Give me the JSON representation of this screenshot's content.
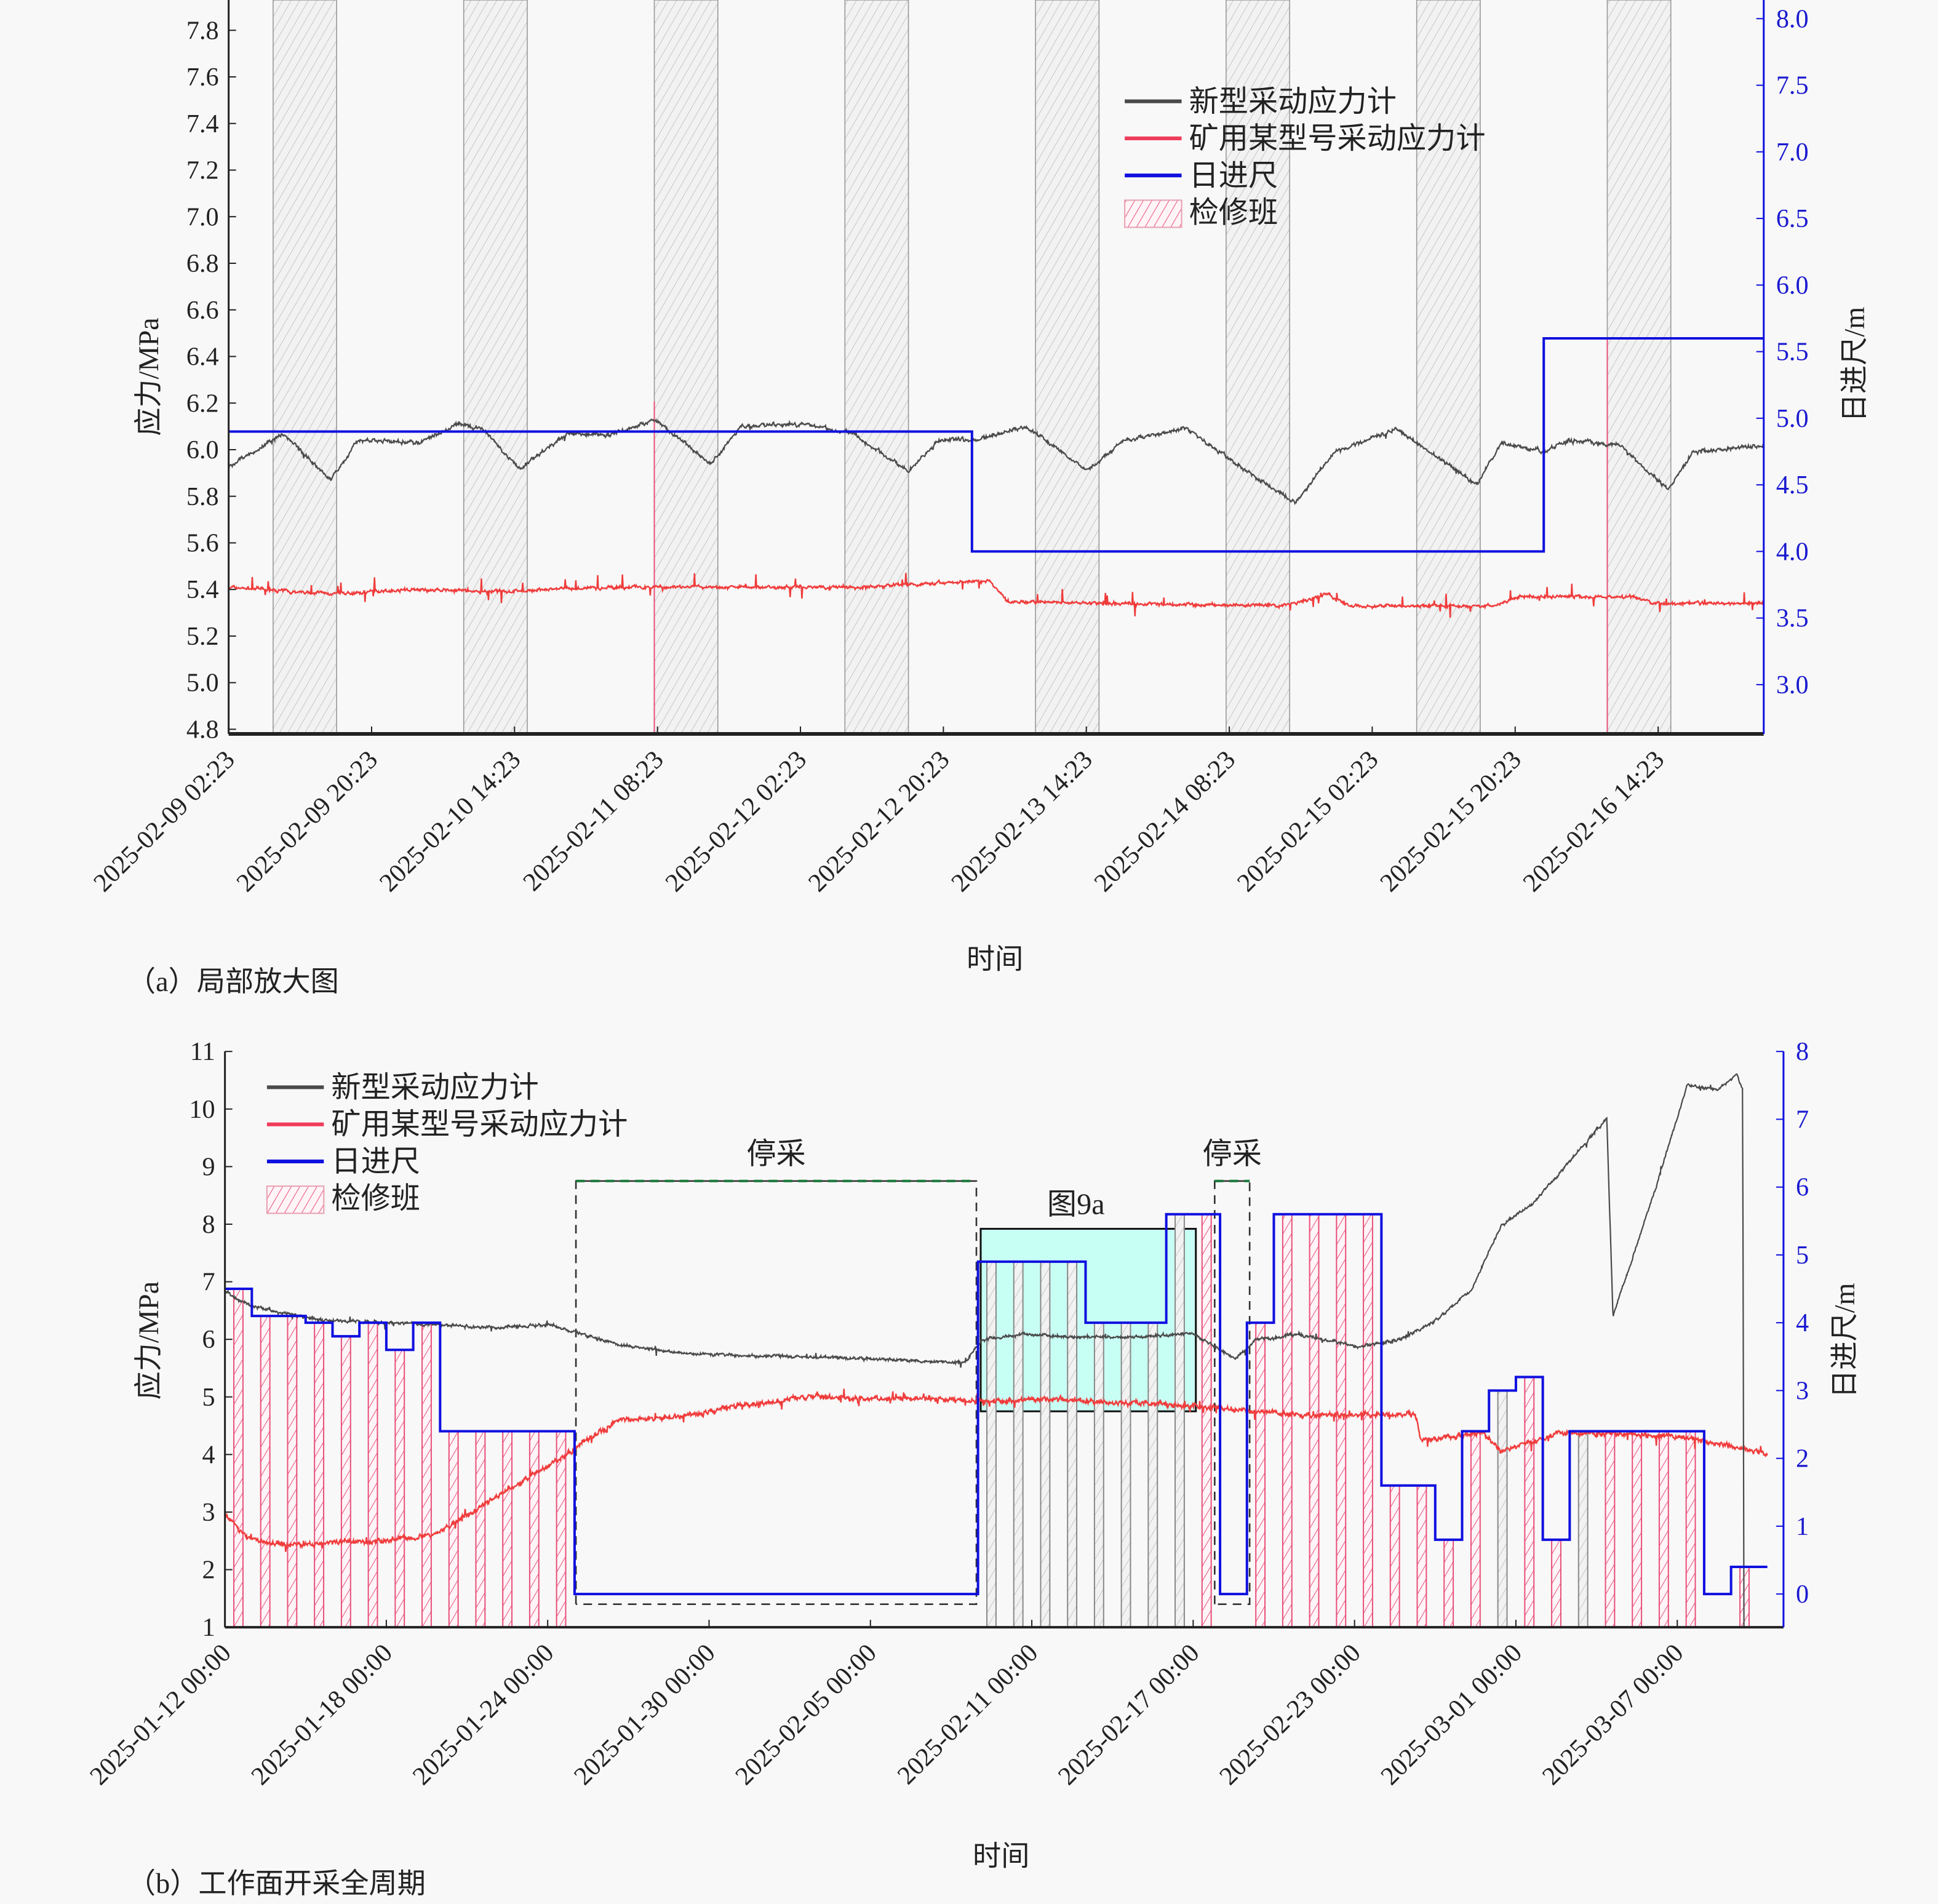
{
  "colors": {
    "new_gauge": "#4a4a4a",
    "mine_gauge": "#f03c3c",
    "advance": "#1010e0",
    "maintenance": "#e8507a",
    "stop_box": "#1a7a3a",
    "fig9a_fill": "#c8fff4"
  },
  "legend": [
    "新型采动应力计",
    "矿用某型号采动应力计",
    "日进尺",
    "检修班"
  ],
  "chart_data": [
    {
      "type": "line",
      "caption": "（a）局部放大图",
      "xlabel": "时间",
      "ylabel": "应力/MPa",
      "y2label": "日进尺/m",
      "x_unit": "hours since 2025-02-09 02:23",
      "xlim": [
        0,
        193.3
      ],
      "ylim": [
        4.78,
        7.93
      ],
      "y2lim": [
        2.63,
        8.14
      ],
      "x_ticks": [
        0,
        18,
        36,
        54,
        72,
        90,
        108,
        126,
        144,
        162,
        180
      ],
      "x_tick_labels": [
        "2025-02-09 02:23",
        "2025-02-09 20:23",
        "2025-02-10 14:23",
        "2025-02-11 08:23",
        "2025-02-12 02:23",
        "2025-02-12 20:23",
        "2025-02-13 14:23",
        "2025-02-14 08:23",
        "2025-02-15 02:23",
        "2025-02-15 20:23",
        "2025-02-16 14:23"
      ],
      "y_ticks": [
        "4.8",
        "5.0",
        "5.2",
        "5.4",
        "5.6",
        "5.8",
        "6.0",
        "6.2",
        "6.4",
        "6.6",
        "6.8",
        "7.0",
        "7.2",
        "7.4",
        "7.6",
        "7.8"
      ],
      "y2_ticks": [
        "3.0",
        "3.5",
        "4.0",
        "4.5",
        "5.0",
        "5.5",
        "6.0",
        "6.5",
        "7.0",
        "7.5",
        "8.0"
      ],
      "series": [
        {
          "name": "新型采动应力计",
          "x": [
            0,
            7,
            12.9,
            16.3,
            24.1,
            28.8,
            31.9,
            36.6,
            42.8,
            47.5,
            53.7,
            60.7,
            64.6,
            72.4,
            78.6,
            85.6,
            89.5,
            94.1,
            100.4,
            108.1,
            112.8,
            120.6,
            126.8,
            134.3,
            139.3,
            147,
            157.2,
            160.3,
            165.7,
            168.8,
            175.1,
            181.3,
            184.4,
            193.3
          ],
          "y": [
            5.93,
            6.07,
            5.87,
            6.04,
            6.03,
            6.11,
            6.09,
            5.92,
            6.07,
            6.06,
            6.13,
            5.94,
            6.1,
            6.11,
            6.07,
            5.91,
            6.04,
            6.04,
            6.1,
            5.91,
            6.04,
            6.09,
            5.94,
            5.77,
            5.99,
            6.09,
            5.85,
            6.03,
            5.99,
            6.04,
            6.02,
            5.83,
            5.99,
            6.02
          ]
        },
        {
          "name": "矿用某型号采动应力计",
          "x": [
            0,
            13.2,
            22.6,
            33.5,
            49,
            64.6,
            80.1,
            95.7,
            98,
            111.3,
            133,
            138.5,
            141.1,
            159.5,
            162.6,
            176.6,
            179.7,
            193.3
          ],
          "y": [
            5.41,
            5.38,
            5.4,
            5.39,
            5.41,
            5.41,
            5.41,
            5.44,
            5.35,
            5.34,
            5.33,
            5.38,
            5.33,
            5.33,
            5.37,
            5.37,
            5.34,
            5.34
          ]
        },
        {
          "name": "日进尺",
          "axis": "right",
          "steps_x": [
            0,
            93.6,
            165.6,
            193.3
          ],
          "steps_y": [
            4.9,
            4.0,
            5.6
          ]
        }
      ],
      "maintenance_hours": [
        [
          5.6,
          13.6
        ],
        [
          29.6,
          37.6
        ],
        [
          53.6,
          61.6
        ],
        [
          77.6,
          85.6
        ],
        [
          101.6,
          109.6
        ],
        [
          125.6,
          133.6
        ],
        [
          149.6,
          157.6
        ],
        [
          173.6,
          181.6
        ]
      ]
    },
    {
      "type": "line",
      "caption": "（b）工作面开采全周期",
      "xlabel": "时间",
      "ylabel": "应力/MPa",
      "y2label": "日进尺/m",
      "x_unit": "days since 2025-01-12 00:00",
      "xlim": [
        0,
        57.95
      ],
      "ylim": [
        1,
        11
      ],
      "y2lim": [
        -0.49,
        8
      ],
      "x_ticks": [
        0,
        6,
        12,
        18,
        24,
        30,
        36,
        42,
        48,
        54
      ],
      "x_tick_labels": [
        "2025-01-12 00:00",
        "2025-01-18 00:00",
        "2025-01-24 00:00",
        "2025-01-30 00:00",
        "2025-02-05 00:00",
        "2025-02-11 00:00",
        "2025-02-17 00:00",
        "2025-02-23 00:00",
        "2025-03-01 00:00",
        "2025-03-07 00:00"
      ],
      "y_ticks": [
        "1",
        "2",
        "3",
        "4",
        "5",
        "6",
        "7",
        "8",
        "9",
        "10",
        "11"
      ],
      "y2_ticks": [
        "0",
        "1",
        "2",
        "3",
        "4",
        "5",
        "6",
        "7",
        "8"
      ],
      "series": [
        {
          "name": "新型采动应力计",
          "x": [
            0,
            0.83,
            2.21,
            3.58,
            5.42,
            7.72,
            10.02,
            12.09,
            13.24,
            14.61,
            16.91,
            19.21,
            21.51,
            23.81,
            26.56,
            27.48,
            28.17,
            29.78,
            31.62,
            33.92,
            35.98,
            37.59,
            38.28,
            39.89,
            42.19,
            43.57,
            44.94,
            46.32,
            47.47,
            48.62,
            50,
            51.38,
            51.61,
            52.3,
            53.22,
            54.37,
            55.51,
            56.2,
            56.43,
            56.48
          ],
          "y": [
            6.84,
            6.6,
            6.45,
            6.34,
            6.3,
            6.26,
            6.2,
            6.26,
            6.09,
            5.91,
            5.76,
            5.72,
            5.7,
            5.66,
            5.61,
            5.6,
            6.0,
            6.09,
            6.04,
            6.04,
            6.1,
            5.66,
            5.98,
            6.09,
            5.87,
            5.98,
            6.3,
            6.84,
            8.0,
            8.34,
            9.1,
            9.84,
            6.41,
            7.37,
            8.66,
            10.42,
            10.33,
            10.6,
            10.34,
            1.0
          ]
        },
        {
          "name": "矿用某型号采动应力计",
          "x": [
            0,
            0.83,
            2.21,
            5.42,
            7.72,
            9.1,
            10.94,
            13.05,
            14.61,
            16.91,
            19.21,
            21.97,
            23.81,
            26.56,
            27.94,
            30.7,
            33,
            36.21,
            39.89,
            44.26,
            44.49,
            46.78,
            47.47,
            49.54,
            51.38,
            54.14,
            57.35
          ],
          "y": [
            2.97,
            2.54,
            2.43,
            2.5,
            2.6,
            2.97,
            3.51,
            4.1,
            4.6,
            4.65,
            4.85,
            5.01,
            4.97,
            4.97,
            4.92,
            4.97,
            4.9,
            4.84,
            4.69,
            4.69,
            4.26,
            4.37,
            4.05,
            4.37,
            4.37,
            4.31,
            4.0
          ]
        },
        {
          "name": "日进尺",
          "axis": "right",
          "steps_x": [
            0,
            1,
            3,
            4,
            5,
            6,
            7,
            8,
            13,
            28,
            32,
            35,
            37,
            38,
            39,
            43,
            45,
            46,
            47,
            48,
            49,
            50,
            55,
            56,
            57.35
          ],
          "steps_y": [
            4.5,
            4.1,
            4.0,
            3.8,
            4.0,
            3.6,
            4.0,
            2.4,
            0,
            4.9,
            4.0,
            5.6,
            0,
            4.0,
            5.6,
            1.6,
            0.8,
            2.4,
            3.0,
            3.2,
            0.8,
            2.4,
            0,
            0.4
          ]
        }
      ],
      "annotations": [
        {
          "text": "停采",
          "x_range": [
            13.05,
            27.94
          ],
          "y_range": [
            1.4,
            8.75
          ]
        },
        {
          "text": "停采",
          "x_range": [
            36.8,
            38.1
          ],
          "y_range": [
            1.4,
            8.75
          ]
        },
        {
          "text": "图9a",
          "x_range": [
            28.1,
            36.1
          ],
          "y_range": [
            4.75,
            7.92
          ]
        }
      ]
    }
  ]
}
